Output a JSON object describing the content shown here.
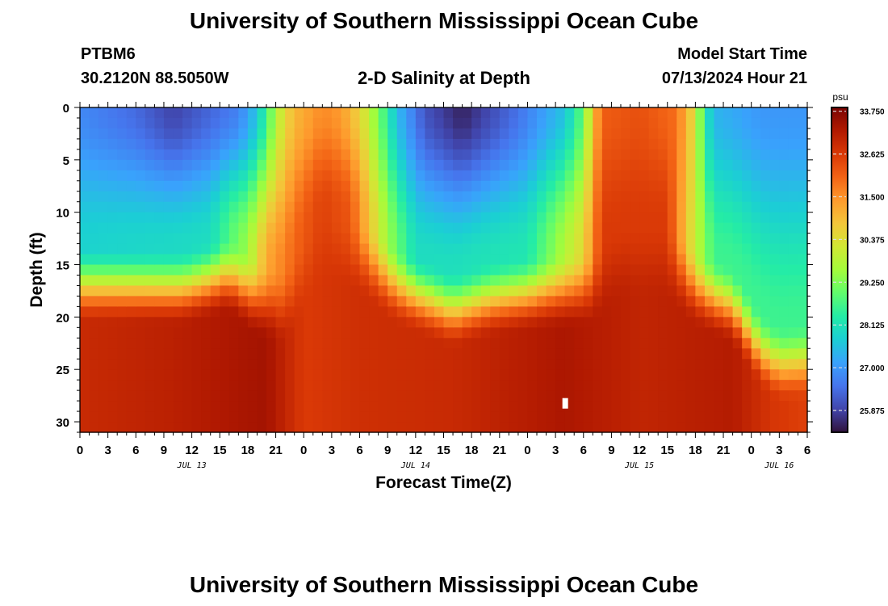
{
  "header": {
    "title": "University of Southern Mississippi Ocean Cube",
    "station_id": "PTBM6",
    "coords": "30.2120N  88.5050W",
    "plot_title": "2-D Salinity at Depth",
    "model_start_label": "Model Start Time",
    "model_start_time": "07/13/2024 Hour 21"
  },
  "footer": {
    "title": "University of Southern Mississippi Ocean Cube"
  },
  "chart_data": {
    "type": "heatmap",
    "title": "2-D Salinity at Depth",
    "xlabel": "Forecast Time(Z)",
    "ylabel": "Depth (ft)",
    "x_tick_labels": [
      "0",
      "3",
      "6",
      "9",
      "12",
      "15",
      "18",
      "21",
      "0",
      "3",
      "6",
      "9",
      "12",
      "15",
      "18",
      "21",
      "0",
      "3",
      "6",
      "9",
      "12",
      "15",
      "18",
      "21",
      "0",
      "3",
      "6"
    ],
    "x_range_hours": [
      0,
      78
    ],
    "day_labels": [
      {
        "label": "JUL 13",
        "hour": 12
      },
      {
        "label": "JUL 14",
        "hour": 36
      },
      {
        "label": "JUL 15",
        "hour": 60
      },
      {
        "label": "JUL 16",
        "hour": 75
      }
    ],
    "y_ticks": [
      "0",
      "5",
      "10",
      "15",
      "20",
      "25",
      "30"
    ],
    "y_range_ft": [
      0,
      31
    ],
    "y_reversed": true,
    "colorbar": {
      "unit": "psu",
      "min": 25.3,
      "max": 33.85,
      "ticks": [
        "33.750",
        "32.625",
        "31.500",
        "30.375",
        "29.250",
        "28.125",
        "27.000",
        "25.875"
      ],
      "colors": [
        "#30123b",
        "#4145ab",
        "#4675ed",
        "#39a2fc",
        "#1bcfd4",
        "#24eca6",
        "#61fc6c",
        "#a4fc3b",
        "#d1e834",
        "#f3c63a",
        "#fe9b2d",
        "#f36315",
        "#d93806",
        "#b11901",
        "#7a0402"
      ]
    },
    "surface_profile": [
      {
        "hour": 0,
        "salinity": 26.8
      },
      {
        "hour": 6,
        "salinity": 26.4
      },
      {
        "hour": 10,
        "salinity": 25.9
      },
      {
        "hour": 17,
        "salinity": 26.7
      },
      {
        "hour": 19,
        "salinity": 27.6
      },
      {
        "hour": 20,
        "salinity": 28.6
      },
      {
        "hour": 21,
        "salinity": 29.7
      },
      {
        "hour": 22,
        "salinity": 30.5
      },
      {
        "hour": 23,
        "salinity": 31.0
      },
      {
        "hour": 26,
        "salinity": 31.6
      },
      {
        "hour": 28,
        "salinity": 31.4
      },
      {
        "hour": 30,
        "salinity": 30.6
      },
      {
        "hour": 32,
        "salinity": 29.2
      },
      {
        "hour": 34,
        "salinity": 27.5
      },
      {
        "hour": 37,
        "salinity": 26.1
      },
      {
        "hour": 41,
        "salinity": 25.5
      },
      {
        "hour": 47,
        "salinity": 26.5
      },
      {
        "hour": 52,
        "salinity": 27.6
      },
      {
        "hour": 54,
        "salinity": 29.0
      },
      {
        "hour": 55,
        "salinity": 30.8
      },
      {
        "hour": 56,
        "salinity": 32.1
      },
      {
        "hour": 60,
        "salinity": 32.3
      },
      {
        "hour": 64,
        "salinity": 31.9
      },
      {
        "hour": 66,
        "salinity": 30.3
      },
      {
        "hour": 67,
        "salinity": 28.3
      },
      {
        "hour": 68,
        "salinity": 27.4
      },
      {
        "hour": 73,
        "salinity": 27.0
      },
      {
        "hour": 78,
        "salinity": 27.0
      }
    ],
    "halocline_depth": [
      {
        "hour": 0,
        "depth_ft": 16.2
      },
      {
        "hour": 11,
        "depth_ft": 16.4
      },
      {
        "hour": 16,
        "depth_ft": 15.2
      },
      {
        "hour": 19,
        "depth_ft": 17.5
      },
      {
        "hour": 22,
        "depth_ft": 18.5
      },
      {
        "hour": 24,
        "depth_ft": 15.0
      },
      {
        "hour": 26,
        "depth_ft": 12.5
      },
      {
        "hour": 30,
        "depth_ft": 13.5
      },
      {
        "hour": 34,
        "depth_ft": 16.3
      },
      {
        "hour": 40,
        "depth_ft": 18.6
      },
      {
        "hour": 44,
        "depth_ft": 17.5
      },
      {
        "hour": 50,
        "depth_ft": 16.8
      },
      {
        "hour": 55,
        "depth_ft": 16.5
      },
      {
        "hour": 58,
        "depth_ft": 14.0
      },
      {
        "hour": 63,
        "depth_ft": 14.0
      },
      {
        "hour": 66,
        "depth_ft": 16.5
      },
      {
        "hour": 70,
        "depth_ft": 18.2
      },
      {
        "hour": 73,
        "depth_ft": 22.5
      },
      {
        "hour": 75,
        "depth_ft": 23.8
      },
      {
        "hour": 78,
        "depth_ft": 23.5
      }
    ],
    "bottom_profile": [
      {
        "hour": 0,
        "salinity": 32.9
      },
      {
        "hour": 10,
        "salinity": 33.1
      },
      {
        "hour": 20,
        "salinity": 33.4
      },
      {
        "hour": 24,
        "salinity": 32.6
      },
      {
        "hour": 30,
        "salinity": 32.8
      },
      {
        "hour": 40,
        "salinity": 32.9
      },
      {
        "hour": 52,
        "salinity": 33.3
      },
      {
        "hour": 60,
        "salinity": 33.0
      },
      {
        "hour": 70,
        "salinity": 33.2
      },
      {
        "hour": 74,
        "salinity": 32.7
      },
      {
        "hour": 78,
        "salinity": 32.5
      }
    ],
    "upper_interior_profile": [
      {
        "hour": 0,
        "salinity": 27.8
      },
      {
        "hour": 14,
        "salinity": 28.0
      },
      {
        "hour": 18,
        "salinity": 29.5
      },
      {
        "hour": 20,
        "salinity": 31.2
      },
      {
        "hour": 23,
        "salinity": 32.0
      },
      {
        "hour": 26,
        "salinity": 32.5
      },
      {
        "hour": 29,
        "salinity": 32.2
      },
      {
        "hour": 33,
        "salinity": 29.5
      },
      {
        "hour": 36,
        "salinity": 28.0
      },
      {
        "hour": 48,
        "salinity": 28.2
      },
      {
        "hour": 54,
        "salinity": 30.5
      },
      {
        "hour": 56,
        "salinity": 32.6
      },
      {
        "hour": 63,
        "salinity": 32.6
      },
      {
        "hour": 66,
        "salinity": 30.0
      },
      {
        "hour": 68,
        "salinity": 28.6
      },
      {
        "hour": 78,
        "salinity": 28.6
      }
    ],
    "marker": {
      "hour": 52,
      "depth_ft": 28.2
    }
  }
}
